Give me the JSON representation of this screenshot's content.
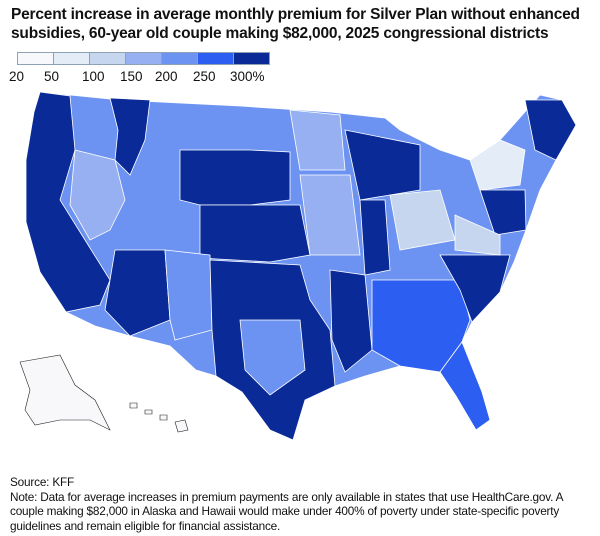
{
  "title": "Percent increase in average monthly premium for Silver Plan without enhanced subsidies, 60-year old couple making $82,000, 2025 congressional districts",
  "legend": {
    "ticks": [
      "20",
      "50",
      "100",
      "150",
      "200",
      "250",
      "300%"
    ],
    "colors": [
      "#f6f8fc",
      "#e4ecf8",
      "#c5d6ee",
      "#97b0f1",
      "#6d93f2",
      "#2b5ef1",
      "#0a2a98"
    ]
  },
  "map_colors": {
    "no_data": "#f8f8fa",
    "border": "#ffffff"
  },
  "footer": {
    "source": "Source: KFF",
    "note": "Note: Data for average increases in premium payments are only available in states that use HealthCare.gov. A couple making $82,000 in Alaska and Hawaii would make under 400% of poverty under state-specific poverty guidelines and remain eligible for financial assistance."
  }
}
